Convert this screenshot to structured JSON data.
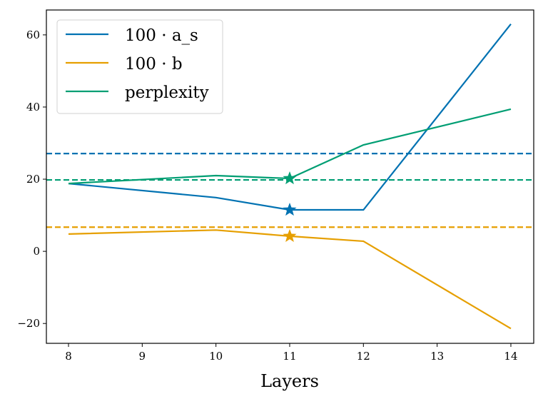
{
  "chart_data": {
    "type": "line",
    "title": "",
    "xlabel": "Layers",
    "ylabel": "",
    "xlim": [
      7.7,
      14.31
    ],
    "ylim": [
      -25.5,
      66.9
    ],
    "xticks": [
      8,
      9,
      10,
      11,
      12,
      13,
      14
    ],
    "xtick_labels": [
      "8",
      "9",
      "10",
      "11",
      "12",
      "13",
      "14"
    ],
    "yticks": [
      -20,
      0,
      20,
      40,
      60
    ],
    "ytick_labels": [
      "−20",
      "0",
      "20",
      "40",
      "60"
    ],
    "grid": false,
    "legend": {
      "placement": "top-left",
      "entries": [
        "100 · a_s",
        "100 · b",
        "perplexity"
      ]
    },
    "series": [
      {
        "name": "100 · a_s",
        "color": "#0072b2",
        "x": [
          8,
          10,
          11,
          12,
          14
        ],
        "y": [
          18.8,
          14.9,
          11.5,
          11.5,
          63.0
        ],
        "baseline": 27.1,
        "star": [
          11,
          11.5
        ]
      },
      {
        "name": "100 · b",
        "color": "#e69f00",
        "x": [
          8,
          10,
          11,
          12,
          14
        ],
        "y": [
          4.8,
          5.9,
          4.2,
          2.8,
          -21.4
        ],
        "baseline": 6.7,
        "star": [
          11,
          4.2
        ]
      },
      {
        "name": "perplexity",
        "color": "#009e73",
        "x": [
          8,
          10,
          11,
          12,
          14
        ],
        "y": [
          18.8,
          21.0,
          20.2,
          29.5,
          39.4
        ],
        "baseline": 19.8,
        "star": [
          11,
          20.2
        ]
      }
    ]
  }
}
